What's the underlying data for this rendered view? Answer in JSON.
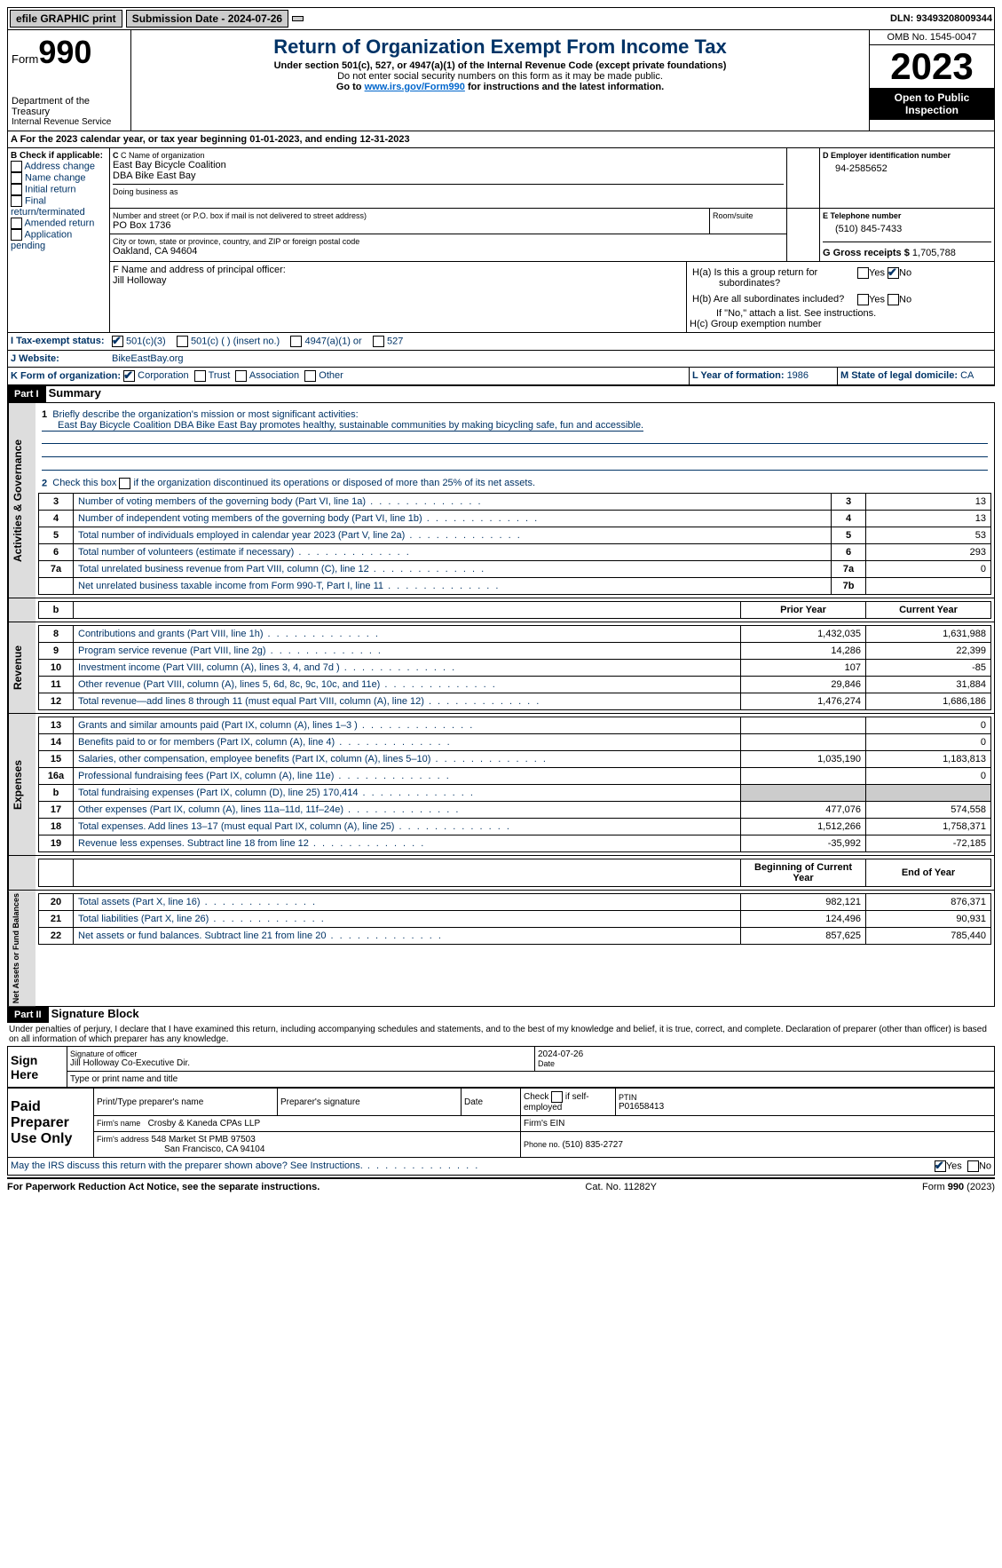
{
  "topbar": {
    "efile": "efile GRAPHIC print",
    "subdate_lbl": "Submission Date - 2024-07-26",
    "dln": "DLN: 93493208009344"
  },
  "header": {
    "form": "Form",
    "num": "990",
    "dept": "Department of the Treasury",
    "irs": "Internal Revenue Service",
    "title": "Return of Organization Exempt From Income Tax",
    "sub1": "Under section 501(c), 527, or 4947(a)(1) of the Internal Revenue Code (except private foundations)",
    "sub2": "Do not enter social security numbers on this form as it may be made public.",
    "sub3a": "Go to ",
    "sub3link": "www.irs.gov/Form990",
    "sub3b": " for instructions and the latest information.",
    "omb": "OMB No. 1545-0047",
    "year": "2023",
    "open": "Open to Public Inspection"
  },
  "period": {
    "a": "A For the 2023 calendar year, or tax year beginning ",
    "b": "01-01-2023",
    "c": ", and ending ",
    "d": "12-31-2023"
  },
  "boxB": {
    "hdr": "B Check if applicable:",
    "items": [
      "Address change",
      "Name change",
      "Initial return",
      "Final return/terminated",
      "Amended return",
      "Application pending"
    ]
  },
  "boxC": {
    "lbl": "C Name of organization",
    "name": "East Bay Bicycle Coalition",
    "dba": "DBA Bike East Bay",
    "dba_lbl": "Doing business as",
    "street_lbl": "Number and street (or P.O. box if mail is not delivered to street address)",
    "street": "PO Box 1736",
    "room": "Room/suite",
    "city_lbl": "City or town, state or province, country, and ZIP or foreign postal code",
    "city": "Oakland, CA  94604"
  },
  "boxD": {
    "lbl": "D Employer identification number",
    "val": "94-2585652"
  },
  "boxE": {
    "lbl": "E Telephone number",
    "val": "(510) 845-7433"
  },
  "boxG": {
    "lbl": "G Gross receipts $ ",
    "val": "1,705,788"
  },
  "boxF": {
    "lbl": "F  Name and address of principal officer:",
    "val": "Jill Holloway"
  },
  "boxH": {
    "a": "H(a)  Is this a group return for",
    "a2": "subordinates?",
    "b": "H(b)  Are all subordinates included?",
    "c": "If \"No,\" attach a list. See instructions.",
    "d": "H(c)  Group exemption number"
  },
  "taxstatus": {
    "lbl": "I  Tax-exempt status:",
    "opts": [
      "501(c)(3)",
      "501(c) (  ) (insert no.)",
      "4947(a)(1) or",
      "527"
    ]
  },
  "website": {
    "lbl": "J  Website:",
    "val": "BikeEastBay.org"
  },
  "boxK": {
    "lbl": "K Form of organization:",
    "opts": [
      "Corporation",
      "Trust",
      "Association",
      "Other"
    ]
  },
  "boxL": {
    "lbl": "L Year of formation: ",
    "val": "1986"
  },
  "boxM": {
    "lbl": "M State of legal domicile: ",
    "val": "CA"
  },
  "part1": {
    "label": "Part I",
    "title": "Summary",
    "q1": "Briefly describe the organization's mission or most significant activities:",
    "mission": "East Bay Bicycle Coalition DBA Bike East Bay promotes healthy, sustainable communities by making bicycling safe, fun and accessible.",
    "q2": "Check this box        if the organization discontinued its operations or disposed of more than 25% of its net assets.",
    "lines": [
      {
        "n": "3",
        "d": "Number of voting members of the governing body (Part VI, line 1a)",
        "ln": "3",
        "v": "13"
      },
      {
        "n": "4",
        "d": "Number of independent voting members of the governing body (Part VI, line 1b)",
        "ln": "4",
        "v": "13"
      },
      {
        "n": "5",
        "d": "Total number of individuals employed in calendar year 2023 (Part V, line 2a)",
        "ln": "5",
        "v": "53"
      },
      {
        "n": "6",
        "d": "Total number of volunteers (estimate if necessary)",
        "ln": "6",
        "v": "293"
      },
      {
        "n": "7a",
        "d": "Total unrelated business revenue from Part VIII, column (C), line 12",
        "ln": "7a",
        "v": "0"
      },
      {
        "n": "",
        "d": "Net unrelated business taxable income from Form 990-T, Part I, line 11",
        "ln": "7b",
        "v": ""
      }
    ],
    "hdr_prior": "Prior Year",
    "hdr_curr": "Current Year",
    "revenue": [
      {
        "n": "8",
        "d": "Contributions and grants (Part VIII, line 1h)",
        "p": "1,432,035",
        "c": "1,631,988"
      },
      {
        "n": "9",
        "d": "Program service revenue (Part VIII, line 2g)",
        "p": "14,286",
        "c": "22,399"
      },
      {
        "n": "10",
        "d": "Investment income (Part VIII, column (A), lines 3, 4, and 7d )",
        "p": "107",
        "c": "-85"
      },
      {
        "n": "11",
        "d": "Other revenue (Part VIII, column (A), lines 5, 6d, 8c, 9c, 10c, and 11e)",
        "p": "29,846",
        "c": "31,884"
      },
      {
        "n": "12",
        "d": "Total revenue—add lines 8 through 11 (must equal Part VIII, column (A), line 12)",
        "p": "1,476,274",
        "c": "1,686,186"
      }
    ],
    "expenses": [
      {
        "n": "13",
        "d": "Grants and similar amounts paid (Part IX, column (A), lines 1–3 )",
        "p": "",
        "c": "0"
      },
      {
        "n": "14",
        "d": "Benefits paid to or for members (Part IX, column (A), line 4)",
        "p": "",
        "c": "0"
      },
      {
        "n": "15",
        "d": "Salaries, other compensation, employee benefits (Part IX, column (A), lines 5–10)",
        "p": "1,035,190",
        "c": "1,183,813"
      },
      {
        "n": "16a",
        "d": "Professional fundraising fees (Part IX, column (A), line 11e)",
        "p": "",
        "c": "0"
      },
      {
        "n": "b",
        "d": "Total fundraising expenses (Part IX, column (D), line 25) 170,414",
        "p": "gray",
        "c": "gray"
      },
      {
        "n": "17",
        "d": "Other expenses (Part IX, column (A), lines 11a–11d, 11f–24e)",
        "p": "477,076",
        "c": "574,558"
      },
      {
        "n": "18",
        "d": "Total expenses. Add lines 13–17 (must equal Part IX, column (A), line 25)",
        "p": "1,512,266",
        "c": "1,758,371"
      },
      {
        "n": "19",
        "d": "Revenue less expenses. Subtract line 18 from line 12",
        "p": "-35,992",
        "c": "-72,185"
      }
    ],
    "hdr_beg": "Beginning of Current Year",
    "hdr_end": "End of Year",
    "netassets": [
      {
        "n": "20",
        "d": "Total assets (Part X, line 16)",
        "p": "982,121",
        "c": "876,371"
      },
      {
        "n": "21",
        "d": "Total liabilities (Part X, line 26)",
        "p": "124,496",
        "c": "90,931"
      },
      {
        "n": "22",
        "d": "Net assets or fund balances. Subtract line 21 from line 20",
        "p": "857,625",
        "c": "785,440"
      }
    ],
    "tab_ag": "Activities & Governance",
    "tab_rev": "Revenue",
    "tab_exp": "Expenses",
    "tab_net": "Net Assets or Fund Balances"
  },
  "part2": {
    "label": "Part II",
    "title": "Signature Block",
    "decl": "Under penalties of perjury, I declare that I have examined this return, including accompanying schedules and statements, and to the best of my knowledge and belief, it is true, correct, and complete. Declaration of preparer (other than officer) is based on all information of which preparer has any knowledge.",
    "sign_here": "Sign Here",
    "paid": "Paid Preparer Use Only",
    "sig_officer": "Signature of officer",
    "officer": "Jill Holloway  Co-Executive Dir.",
    "type_lbl": "Type or print name and title",
    "date": "2024-07-26",
    "date_lbl": "Date",
    "prep_name_lbl": "Print/Type preparer's name",
    "prep_sig_lbl": "Preparer's signature",
    "chk_self": "Check         if self-employed",
    "ptin_lbl": "PTIN",
    "ptin": "P01658413",
    "firm_name_lbl": "Firm's name",
    "firm_name": "Crosby & Kaneda CPAs LLP",
    "firm_ein_lbl": "Firm's EIN",
    "firm_addr_lbl": "Firm's address",
    "firm_addr": "548 Market St PMB 97503",
    "firm_city": "San Francisco, CA  94104",
    "phone_lbl": "Phone no. ",
    "phone": "(510) 835-2727",
    "may_irs": "May the IRS discuss this return with the preparer shown above? See Instructions."
  },
  "footer": {
    "a": "For Paperwork Reduction Act Notice, see the separate instructions.",
    "b": "Cat. No. 11282Y",
    "c": "Form 990 (2023)"
  },
  "yes": "Yes",
  "no": "No"
}
